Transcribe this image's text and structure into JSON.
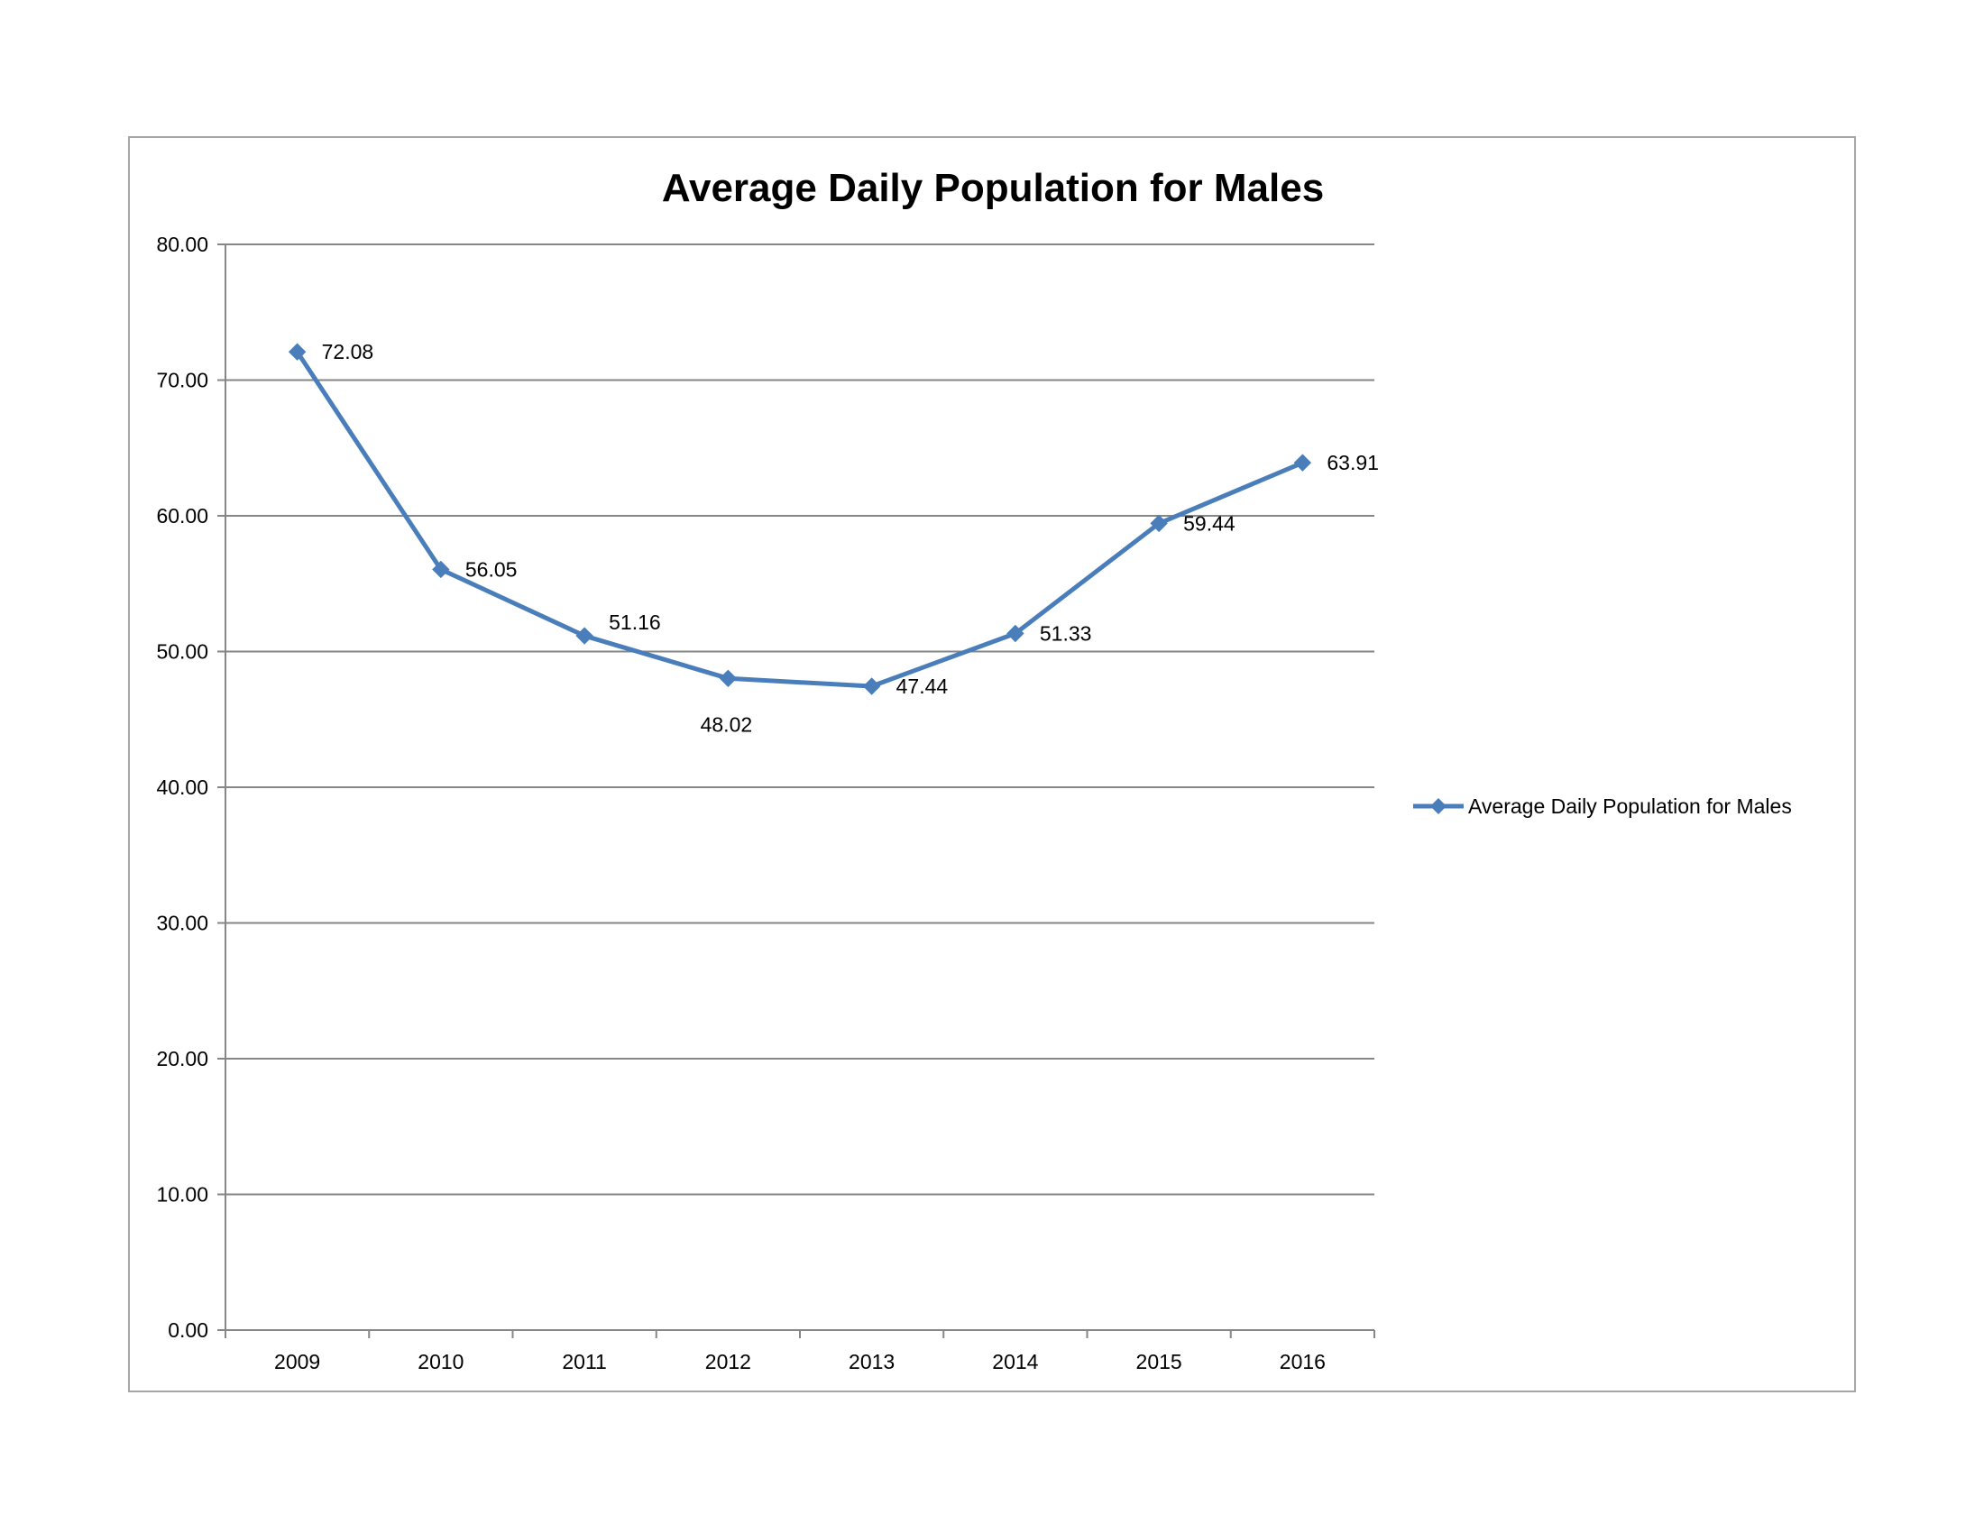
{
  "chart_data": {
    "type": "line",
    "title": "Average Daily Population for Males",
    "categories": [
      "2009",
      "2010",
      "2011",
      "2012",
      "2013",
      "2014",
      "2015",
      "2016"
    ],
    "series": [
      {
        "name": "Average Daily Population for Males",
        "values": [
          72.08,
          56.05,
          51.16,
          48.02,
          47.44,
          51.33,
          59.44,
          63.91
        ],
        "labels": [
          "72.08",
          "56.05",
          "51.16",
          "48.02",
          "47.44",
          "51.33",
          "59.44",
          "63.91"
        ],
        "color": "#4a7ebb",
        "marker": "diamond"
      }
    ],
    "y_ticks": [
      "0.00",
      "10.00",
      "20.00",
      "30.00",
      "40.00",
      "50.00",
      "60.00",
      "70.00",
      "80.00"
    ],
    "ylim": [
      0,
      80
    ],
    "xlabel": "",
    "ylabel": "",
    "grid": true,
    "legend_position": "right",
    "gridline_color": "#868686",
    "axis_color": "#868686"
  }
}
